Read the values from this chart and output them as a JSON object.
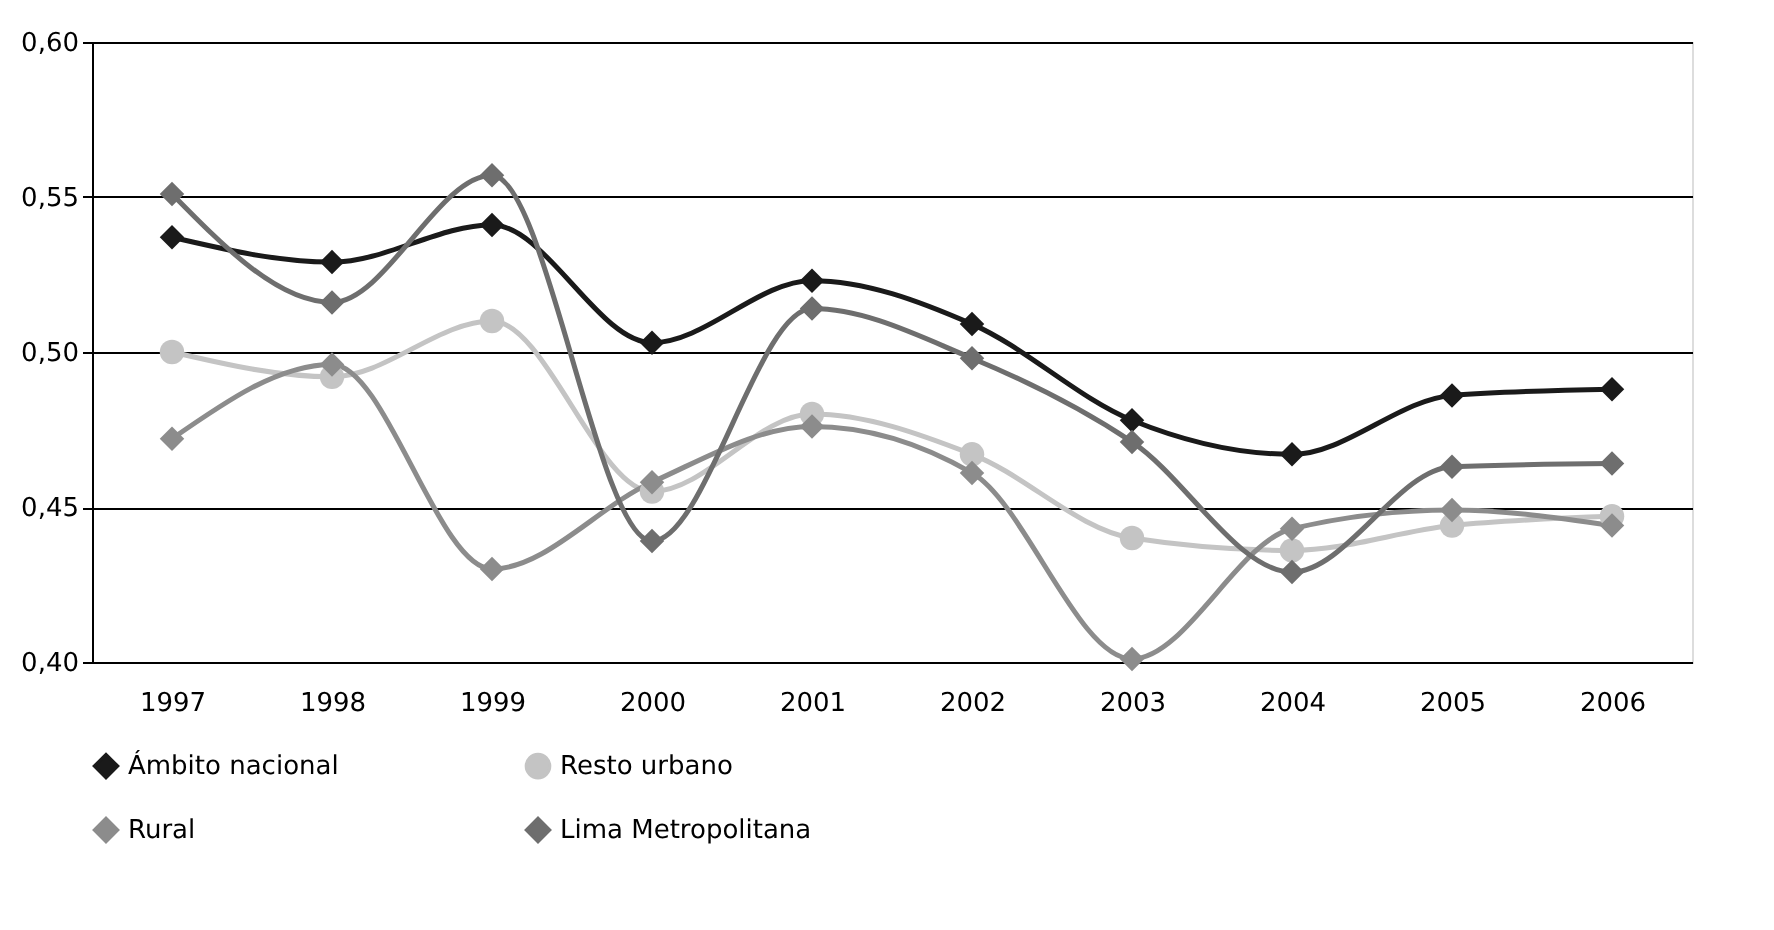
{
  "chart_data": {
    "type": "line",
    "categories": [
      "1997",
      "1998",
      "1999",
      "2000",
      "2001",
      "2002",
      "2003",
      "2004",
      "2005",
      "2006"
    ],
    "series": [
      {
        "name": "Ámbito nacional",
        "color": "#1a1a1a",
        "marker": "diamond",
        "values": [
          0.537,
          0.529,
          0.541,
          0.503,
          0.523,
          0.509,
          0.478,
          0.467,
          0.486,
          0.488
        ]
      },
      {
        "name": "Resto urbano",
        "color": "#c4c4c4",
        "marker": "circle",
        "values": [
          0.5,
          0.492,
          0.51,
          0.455,
          0.48,
          0.467,
          0.44,
          0.436,
          0.444,
          0.447
        ]
      },
      {
        "name": "Rural",
        "color": "#8c8c8c",
        "marker": "diamond",
        "values": [
          0.472,
          0.496,
          0.43,
          0.458,
          0.476,
          0.461,
          0.401,
          0.443,
          0.449,
          0.444
        ]
      },
      {
        "name": "Lima Metropolitana",
        "color": "#6e6e6e",
        "marker": "diamond",
        "values": [
          0.551,
          0.516,
          0.557,
          0.439,
          0.514,
          0.498,
          0.471,
          0.429,
          0.463,
          0.464
        ]
      }
    ],
    "ylim": [
      0.4,
      0.6
    ],
    "yticks": [
      {
        "value": 0.4,
        "label": "0,40"
      },
      {
        "value": 0.45,
        "label": "0,45"
      },
      {
        "value": 0.5,
        "label": "0,50"
      },
      {
        "value": 0.55,
        "label": "0,55"
      },
      {
        "value": 0.6,
        "label": "0,60"
      }
    ],
    "grid": "y",
    "legend": "bottom",
    "line_style": "solid"
  }
}
